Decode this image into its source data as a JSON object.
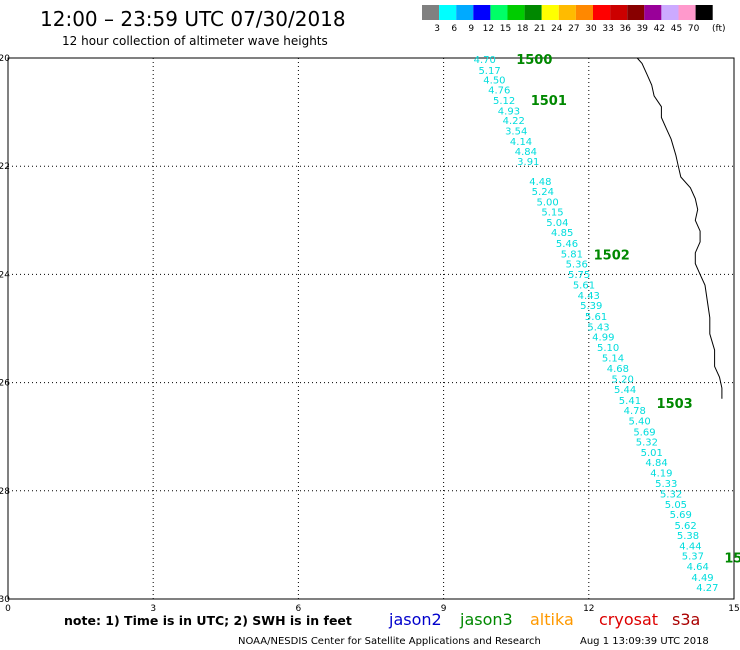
{
  "header": {
    "title": "12:00 – 23:59 UTC 07/30/2018",
    "subtitle": "12 hour collection of altimeter wave heights"
  },
  "legend": {
    "unit": "(ft)",
    "bins": [
      {
        "label": "3",
        "color": "#808080"
      },
      {
        "label": "6",
        "color": "#00ffff"
      },
      {
        "label": "9",
        "color": "#00aaff"
      },
      {
        "label": "12",
        "color": "#0000ff"
      },
      {
        "label": "15",
        "color": "#00ff66"
      },
      {
        "label": "18",
        "color": "#00cc00"
      },
      {
        "label": "21",
        "color": "#008800"
      },
      {
        "label": "24",
        "color": "#ffff00"
      },
      {
        "label": "27",
        "color": "#ffbb00"
      },
      {
        "label": "30",
        "color": "#ff8800"
      },
      {
        "label": "33",
        "color": "#ff0000"
      },
      {
        "label": "36",
        "color": "#cc0000"
      },
      {
        "label": "39",
        "color": "#880000"
      },
      {
        "label": "42",
        "color": "#990099"
      },
      {
        "label": "45",
        "color": "#ccaaff"
      },
      {
        "label": "70",
        "color": "#ff99cc"
      },
      {
        "label": "",
        "color": "#000000"
      }
    ]
  },
  "map": {
    "x_ticks": [
      "0",
      "3",
      "6",
      "9",
      "12",
      "15"
    ],
    "y_ticks": [
      "-20",
      "-22",
      "-24",
      "-26",
      "-28",
      "-30"
    ],
    "x_range": [
      0,
      15
    ],
    "y_range": [
      -20,
      -30
    ],
    "grid": "dotted",
    "coastline": [
      [
        13.0,
        -20.0
      ],
      [
        13.1,
        -20.1
      ],
      [
        13.2,
        -20.3
      ],
      [
        13.3,
        -20.5
      ],
      [
        13.35,
        -20.7
      ],
      [
        13.5,
        -20.9
      ],
      [
        13.5,
        -21.1
      ],
      [
        13.6,
        -21.3
      ],
      [
        13.7,
        -21.5
      ],
      [
        13.8,
        -21.8
      ],
      [
        13.85,
        -22.0
      ],
      [
        13.9,
        -22.2
      ],
      [
        14.1,
        -22.4
      ],
      [
        14.2,
        -22.6
      ],
      [
        14.25,
        -22.8
      ],
      [
        14.2,
        -23.0
      ],
      [
        14.3,
        -23.2
      ],
      [
        14.3,
        -23.4
      ],
      [
        14.2,
        -23.6
      ],
      [
        14.2,
        -23.8
      ],
      [
        14.3,
        -24.0
      ],
      [
        14.4,
        -24.2
      ],
      [
        14.45,
        -24.5
      ],
      [
        14.5,
        -24.8
      ],
      [
        14.5,
        -25.1
      ],
      [
        14.6,
        -25.4
      ],
      [
        14.6,
        -25.7
      ],
      [
        14.7,
        -25.9
      ],
      [
        14.75,
        -26.1
      ],
      [
        14.75,
        -26.3
      ]
    ],
    "passes": [
      {
        "id": "1500",
        "x": 10.5,
        "y": -20.02
      },
      {
        "id": "1501",
        "x": 10.8,
        "y": -20.78
      },
      {
        "id": "1502",
        "x": 12.1,
        "y": -23.63
      },
      {
        "id": "1503",
        "x": 13.4,
        "y": -26.38
      },
      {
        "id": "15",
        "x": 14.8,
        "y": -29.23
      }
    ],
    "observations": [
      {
        "v": "4.70",
        "x": 9.85,
        "y": -20.02
      },
      {
        "v": "5.17",
        "x": 9.95,
        "y": -20.22
      },
      {
        "v": "4.50",
        "x": 10.05,
        "y": -20.4
      },
      {
        "v": "4.76",
        "x": 10.15,
        "y": -20.58
      },
      {
        "v": "5.12",
        "x": 10.25,
        "y": -20.78
      },
      {
        "v": "4.93",
        "x": 10.35,
        "y": -20.97
      },
      {
        "v": "4.22",
        "x": 10.45,
        "y": -21.15
      },
      {
        "v": "3.54",
        "x": 10.5,
        "y": -21.34
      },
      {
        "v": "4.14",
        "x": 10.6,
        "y": -21.53
      },
      {
        "v": "4.84",
        "x": 10.7,
        "y": -21.72
      },
      {
        "v": "3.91",
        "x": 10.75,
        "y": -21.9
      },
      {
        "v": "4.48",
        "x": 11.0,
        "y": -22.27
      },
      {
        "v": "5.24",
        "x": 11.05,
        "y": -22.46
      },
      {
        "v": "5.00",
        "x": 11.15,
        "y": -22.65
      },
      {
        "v": "5.15",
        "x": 11.25,
        "y": -22.84
      },
      {
        "v": "5.04",
        "x": 11.35,
        "y": -23.03
      },
      {
        "v": "4.85",
        "x": 11.45,
        "y": -23.22
      },
      {
        "v": "5.46",
        "x": 11.55,
        "y": -23.42
      },
      {
        "v": "5.81",
        "x": 11.65,
        "y": -23.61
      },
      {
        "v": "5.36",
        "x": 11.75,
        "y": -23.8
      },
      {
        "v": "5.75",
        "x": 11.8,
        "y": -23.99
      },
      {
        "v": "5.61",
        "x": 11.9,
        "y": -24.19
      },
      {
        "v": "4.43",
        "x": 12.0,
        "y": -24.38
      },
      {
        "v": "5.39",
        "x": 12.05,
        "y": -24.57
      },
      {
        "v": "5.61",
        "x": 12.15,
        "y": -24.77
      },
      {
        "v": "5.43",
        "x": 12.2,
        "y": -24.96
      },
      {
        "v": "4.99",
        "x": 12.3,
        "y": -25.15
      },
      {
        "v": "5.10",
        "x": 12.4,
        "y": -25.34
      },
      {
        "v": "5.14",
        "x": 12.5,
        "y": -25.54
      },
      {
        "v": "4.68",
        "x": 12.6,
        "y": -25.73
      },
      {
        "v": "5.20",
        "x": 12.7,
        "y": -25.92
      },
      {
        "v": "5.44",
        "x": 12.75,
        "y": -26.12
      },
      {
        "v": "5.41",
        "x": 12.85,
        "y": -26.32
      },
      {
        "v": "4.78",
        "x": 12.95,
        "y": -26.51
      },
      {
        "v": "5.40",
        "x": 13.05,
        "y": -26.7
      },
      {
        "v": "5.69",
        "x": 13.15,
        "y": -26.9
      },
      {
        "v": "5.32",
        "x": 13.2,
        "y": -27.09
      },
      {
        "v": "5.01",
        "x": 13.3,
        "y": -27.28
      },
      {
        "v": "4.84",
        "x": 13.4,
        "y": -27.47
      },
      {
        "v": "4.19",
        "x": 13.5,
        "y": -27.66
      },
      {
        "v": "5.33",
        "x": 13.6,
        "y": -27.86
      },
      {
        "v": "5.32",
        "x": 13.7,
        "y": -28.05
      },
      {
        "v": "5.05",
        "x": 13.8,
        "y": -28.24
      },
      {
        "v": "5.69",
        "x": 13.9,
        "y": -28.43
      },
      {
        "v": "5.62",
        "x": 14.0,
        "y": -28.63
      },
      {
        "v": "5.38",
        "x": 14.05,
        "y": -28.82
      },
      {
        "v": "4.44",
        "x": 14.1,
        "y": -29.01
      },
      {
        "v": "5.37",
        "x": 14.15,
        "y": -29.2
      },
      {
        "v": "4.64",
        "x": 14.25,
        "y": -29.39
      },
      {
        "v": "4.49",
        "x": 14.35,
        "y": -29.59
      },
      {
        "v": "4.27",
        "x": 14.45,
        "y": -29.78
      }
    ]
  },
  "footer": {
    "note": "note:  1) Time is in UTC;  2) SWH is in feet",
    "satellites": [
      {
        "name": "jason2",
        "color": "#0000cc"
      },
      {
        "name": "jason3",
        "color": "#008800"
      },
      {
        "name": "altika",
        "color": "#ff9900"
      },
      {
        "name": "cryosat",
        "color": "#dd0000"
      },
      {
        "name": "s3a",
        "color": "#aa0000"
      }
    ],
    "credit": "NOAA/NESDIS Center for Satellite Applications and Research",
    "timestamp": "Aug  1 13:09:39 UTC 2018"
  },
  "colors": {
    "obs_text": "#00dddd",
    "pass_text": "#008800",
    "coast": "#000000"
  }
}
